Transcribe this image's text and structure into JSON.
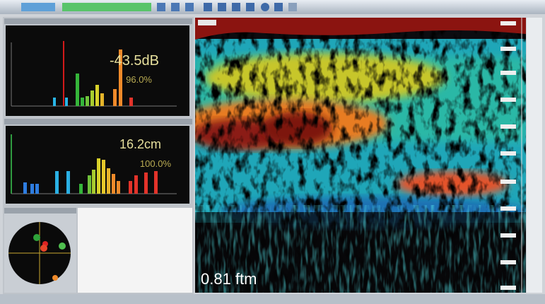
{
  "histogram_top": {
    "level": "-43.5dB",
    "percent": "96.0%"
  },
  "histogram_bottom": {
    "size": "16.2cm",
    "percent": "100.0%"
  },
  "echogram": {
    "depth": "0.81 ftm"
  }
}
